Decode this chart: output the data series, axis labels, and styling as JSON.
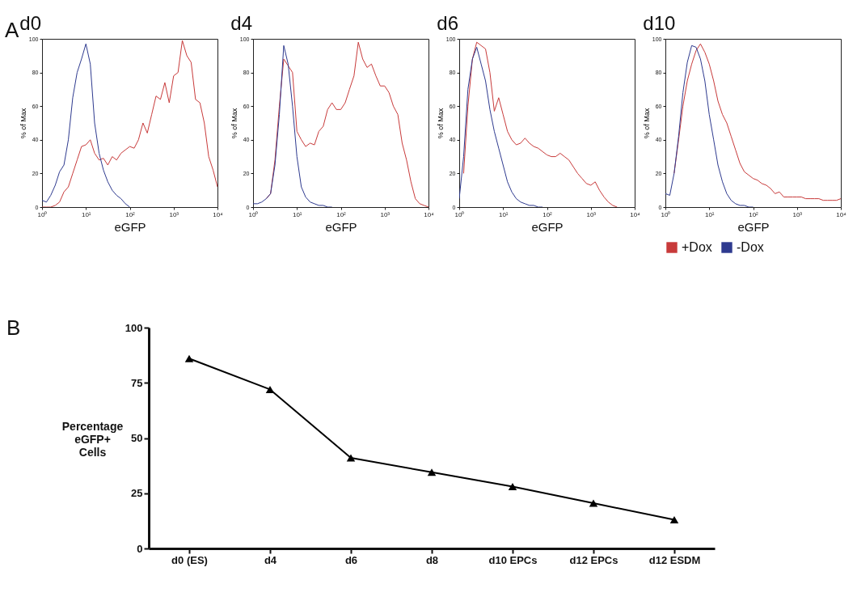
{
  "chart_data": [
    {
      "type": "line",
      "title": "d0",
      "xlabel": "eGFP",
      "ylabel": "% of Max",
      "annotations": [
        "A"
      ],
      "log": "x",
      "xlim": [
        1,
        10000
      ],
      "xticks": [
        {
          "value": 1,
          "label": "10⁰"
        },
        {
          "value": 10,
          "label": "10¹"
        },
        {
          "value": 100,
          "label": "10²"
        },
        {
          "value": 1000,
          "label": "10³"
        },
        {
          "value": 10000,
          "label": "10⁴"
        }
      ],
      "ylim": [
        0,
        100
      ],
      "yticks": [
        0,
        20,
        40,
        60,
        80,
        100
      ],
      "x": [
        1,
        1.26,
        1.58,
        2,
        2.51,
        3.16,
        3.98,
        5.01,
        6.31,
        7.94,
        10,
        12.6,
        15.8,
        20,
        25.1,
        31.6,
        39.8,
        50.1,
        63.1,
        79.4,
        100,
        126,
        158,
        200,
        251,
        316,
        398,
        501,
        631,
        794,
        1000,
        1260,
        1580,
        2000,
        2510,
        3160,
        3980,
        5010,
        6310,
        7940,
        10000
      ],
      "series": [
        {
          "color": "#c83a3a",
          "values": [
            0,
            0,
            0,
            1,
            3,
            9,
            12,
            20,
            28,
            36,
            37,
            40,
            32,
            28,
            29,
            25,
            30,
            28,
            32,
            34,
            36,
            35,
            40,
            50,
            44,
            55,
            66,
            64,
            74,
            62,
            78,
            80,
            99,
            90,
            86,
            64,
            62,
            50,
            30,
            22,
            12
          ]
        },
        {
          "color": "#2e3a8f",
          "values": [
            4,
            3,
            7,
            13,
            21,
            25,
            40,
            65,
            80,
            88,
            97,
            85,
            50,
            32,
            22,
            15,
            10,
            7,
            5,
            2,
            0,
            null,
            null,
            null,
            null,
            null,
            null,
            null,
            null,
            null,
            null,
            null,
            null,
            null,
            null,
            null,
            null,
            null,
            null,
            null,
            null
          ]
        }
      ]
    },
    {
      "type": "line",
      "title": "d4",
      "xlabel": "eGFP",
      "ylabel": "% of Max",
      "log": "x",
      "xlim": [
        1,
        10000
      ],
      "xticks": [
        {
          "value": 1,
          "label": "10⁰"
        },
        {
          "value": 10,
          "label": "10¹"
        },
        {
          "value": 100,
          "label": "10²"
        },
        {
          "value": 1000,
          "label": "10³"
        },
        {
          "value": 10000,
          "label": "10⁴"
        }
      ],
      "ylim": [
        0,
        100
      ],
      "yticks": [
        0,
        20,
        40,
        60,
        80,
        100
      ],
      "x": [
        1,
        1.26,
        1.58,
        2,
        2.51,
        3.16,
        3.98,
        5.01,
        6.31,
        7.94,
        10,
        12.6,
        15.8,
        20,
        25.1,
        31.6,
        39.8,
        50.1,
        63.1,
        79.4,
        100,
        126,
        158,
        200,
        251,
        316,
        398,
        501,
        631,
        794,
        1000,
        1260,
        1580,
        2000,
        2510,
        3160,
        3980,
        5010,
        6310,
        7940,
        10000
      ],
      "series": [
        {
          "color": "#c83a3a",
          "values": [
            null,
            null,
            null,
            5,
            8,
            28,
            60,
            88,
            84,
            80,
            45,
            40,
            36,
            38,
            37,
            45,
            48,
            58,
            62,
            58,
            58,
            62,
            70,
            78,
            98,
            88,
            83,
            85,
            78,
            72,
            72,
            68,
            60,
            55,
            38,
            28,
            15,
            5,
            2,
            1,
            0
          ]
        },
        {
          "color": "#2e3a8f",
          "values": [
            2,
            2,
            3,
            5,
            8,
            25,
            55,
            96,
            85,
            60,
            30,
            12,
            6,
            3,
            2,
            1,
            1,
            0,
            0,
            null,
            null,
            null,
            null,
            null,
            null,
            null,
            null,
            null,
            null,
            null,
            null,
            null,
            null,
            null,
            null,
            null,
            null,
            null,
            null,
            null,
            null
          ]
        }
      ]
    },
    {
      "type": "line",
      "title": "d6",
      "xlabel": "eGFP",
      "ylabel": "% of Max",
      "log": "x",
      "xlim": [
        1,
        10000
      ],
      "xticks": [
        {
          "value": 1,
          "label": "10⁰"
        },
        {
          "value": 10,
          "label": "10¹"
        },
        {
          "value": 100,
          "label": "10²"
        },
        {
          "value": 1000,
          "label": "10³"
        },
        {
          "value": 10000,
          "label": "10⁴"
        }
      ],
      "ylim": [
        0,
        100
      ],
      "yticks": [
        0,
        20,
        40,
        60,
        80,
        100
      ],
      "x": [
        1,
        1.26,
        1.58,
        2,
        2.51,
        3.16,
        3.98,
        5.01,
        6.31,
        7.94,
        10,
        12.6,
        15.8,
        20,
        25.1,
        31.6,
        39.8,
        50.1,
        63.1,
        79.4,
        100,
        126,
        158,
        200,
        251,
        316,
        398,
        501,
        631,
        794,
        1000,
        1260,
        1580,
        2000,
        2510,
        3160,
        3980
      ],
      "series": [
        {
          "color": "#c83a3a",
          "values": [
            null,
            20,
            60,
            88,
            98,
            96,
            94,
            80,
            57,
            65,
            55,
            45,
            40,
            37,
            38,
            41,
            38,
            36,
            35,
            33,
            31,
            30,
            30,
            32,
            30,
            28,
            24,
            20,
            17,
            14,
            13,
            15,
            10,
            6,
            3,
            1,
            0
          ]
        },
        {
          "color": "#2e3a8f",
          "values": [
            5,
            30,
            70,
            88,
            95,
            85,
            75,
            58,
            45,
            35,
            25,
            15,
            9,
            5,
            3,
            2,
            1,
            1,
            0,
            0,
            null,
            null,
            null,
            null,
            null,
            null,
            null,
            null,
            null,
            null,
            null,
            null,
            null,
            null,
            null,
            null,
            null
          ]
        }
      ]
    },
    {
      "type": "line",
      "title": "d10",
      "xlabel": "eGFP",
      "ylabel": "% of Max",
      "log": "x",
      "legend": "bottom",
      "xlim": [
        1,
        10000
      ],
      "xticks": [
        {
          "value": 1,
          "label": "10⁰"
        },
        {
          "value": 10,
          "label": "10¹"
        },
        {
          "value": 100,
          "label": "10²"
        },
        {
          "value": 1000,
          "label": "10³"
        },
        {
          "value": 10000,
          "label": "10⁴"
        }
      ],
      "ylim": [
        0,
        100
      ],
      "yticks": [
        0,
        20,
        40,
        60,
        80,
        100
      ],
      "x": [
        1,
        1.26,
        1.58,
        2,
        2.51,
        3.16,
        3.98,
        5.01,
        6.31,
        7.94,
        10,
        12.6,
        15.8,
        20,
        25.1,
        31.6,
        39.8,
        50.1,
        63.1,
        79.4,
        100,
        126,
        158,
        200,
        251,
        316,
        398,
        501,
        631,
        794,
        1000,
        1260,
        1580,
        2000,
        2510,
        3160,
        3980,
        5010,
        6310,
        7940,
        10000
      ],
      "series": [
        {
          "name": "+Dox",
          "color": "#c83a3a",
          "values": [
            null,
            null,
            20,
            40,
            60,
            75,
            85,
            93,
            97,
            92,
            85,
            75,
            63,
            55,
            50,
            42,
            34,
            26,
            21,
            19,
            17,
            16,
            14,
            13,
            11,
            8,
            9,
            6,
            6,
            6,
            6,
            6,
            5,
            5,
            5,
            5,
            4,
            4,
            4,
            4,
            5
          ]
        },
        {
          "name": "-Dox",
          "color": "#2e3a8f",
          "values": [
            8,
            7,
            20,
            42,
            68,
            86,
            96,
            95,
            88,
            75,
            55,
            40,
            25,
            15,
            8,
            4,
            2,
            1,
            1,
            0,
            0,
            null,
            null,
            null,
            null,
            null,
            null,
            null,
            null,
            null,
            null,
            null,
            null,
            null,
            null,
            null,
            null,
            null,
            null,
            null,
            null
          ]
        }
      ]
    },
    {
      "type": "line",
      "ylabel": "Percentage eGFP+ Cells",
      "annotations": [
        "B"
      ],
      "marker": "triangle",
      "categories": [
        "d0 (ES)",
        "d4",
        "d6",
        "d8",
        "d10 EPCs",
        "d12 EPCs",
        "d12 ESDM"
      ],
      "ylim": [
        0,
        100
      ],
      "yticks": [
        0,
        25,
        50,
        75,
        100
      ],
      "series": [
        {
          "color": "#000000",
          "values": [
            86,
            72,
            41,
            34.5,
            28,
            20.5,
            13
          ]
        }
      ]
    }
  ]
}
